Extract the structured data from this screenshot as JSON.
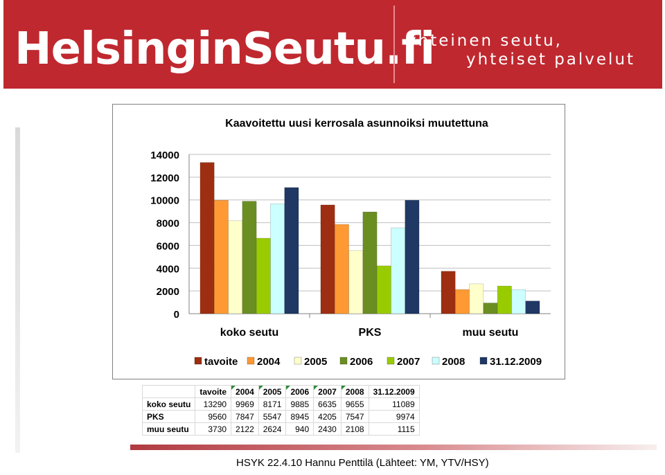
{
  "header": {
    "logo_text": "HelsinginSeutu.fi",
    "slogan_line1": "yhteinen seutu,",
    "slogan_line2": "yhteiset palvelut"
  },
  "colors": {
    "banner": "#c0282f",
    "series": [
      "#9e2e11",
      "#ff9933",
      "#ffffcc",
      "#6b8e23",
      "#99cc00",
      "#ccffff",
      "#1f3864"
    ]
  },
  "chart_data": {
    "type": "bar",
    "title": "Kaavoitettu uusi kerrosala asunnoiksi muutettuna",
    "categories": [
      "koko seutu",
      "PKS",
      "muu seutu"
    ],
    "series": [
      {
        "name": "tavoite",
        "values": [
          13290,
          9560,
          3730
        ]
      },
      {
        "name": "2004",
        "values": [
          9969,
          7847,
          2122
        ]
      },
      {
        "name": "2005",
        "values": [
          8171,
          5547,
          2624
        ]
      },
      {
        "name": "2006",
        "values": [
          9885,
          8945,
          940
        ]
      },
      {
        "name": "2007",
        "values": [
          6635,
          4205,
          2430
        ]
      },
      {
        "name": "2008",
        "values": [
          9655,
          7547,
          2108
        ]
      },
      {
        "name": "31.12.2009",
        "values": [
          11089,
          9974,
          1115
        ]
      }
    ],
    "ylim": [
      0,
      14000
    ],
    "yticks": [
      0,
      2000,
      4000,
      6000,
      8000,
      10000,
      12000,
      14000
    ],
    "grid": true,
    "legend": "bottom"
  },
  "table": {
    "headers": [
      "tavoite",
      "2004",
      "2005",
      "2006",
      "2007",
      "2008",
      "31.12.2009"
    ],
    "rows": [
      {
        "label": "koko seutu",
        "values": [
          "13290",
          "9969",
          "8171",
          "9885",
          "6635",
          "9655",
          "11089"
        ]
      },
      {
        "label": "PKS",
        "values": [
          "9560",
          "7847",
          "5547",
          "8945",
          "4205",
          "7547",
          "9974"
        ]
      },
      {
        "label": "muu seutu",
        "values": [
          "3730",
          "2122",
          "2624",
          "940",
          "2430",
          "2108",
          "1115"
        ]
      }
    ]
  },
  "footer": {
    "text": "HSYK 22.4.10 Hannu Penttilä  (Lähteet: YM, YTV/HSY)"
  }
}
